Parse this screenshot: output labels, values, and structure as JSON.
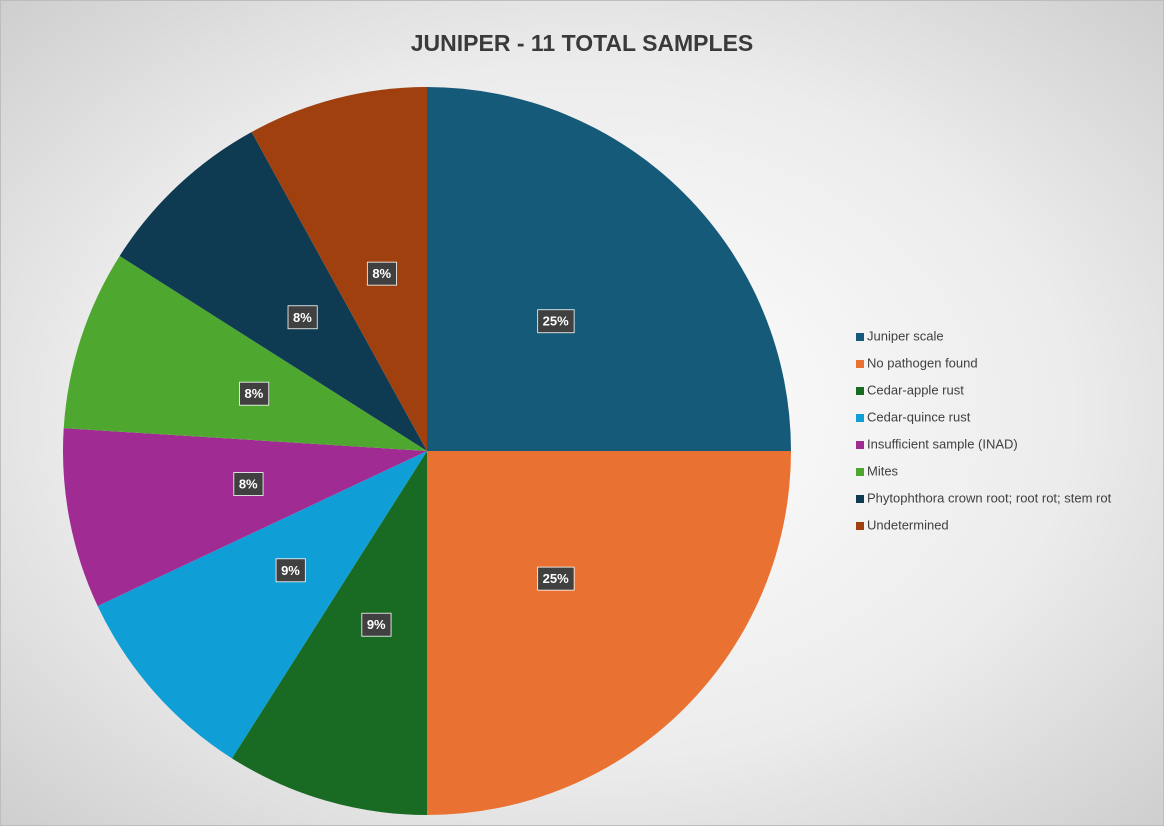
{
  "chart_data": {
    "type": "pie",
    "title": "JUNIPER - 11 TOTAL SAMPLES",
    "categories": [
      "Juniper scale",
      "No pathogen found",
      "Cedar-apple rust",
      "Cedar-quince rust",
      "Insufficient sample (INAD)",
      "Mites",
      "Phytophthora crown root; root rot; stem rot",
      "Undetermined"
    ],
    "values": [
      25,
      25,
      9,
      9,
      8,
      8,
      8,
      8
    ],
    "value_labels": [
      "25%",
      "25%",
      "9%",
      "9%",
      "8%",
      "8%",
      "8%",
      "8%"
    ],
    "colors": [
      "#165a7a",
      "#e97132",
      "#196b24",
      "#0f9ed5",
      "#a02b93",
      "#4ea72e",
      "#0e3a52",
      "#a0400f"
    ],
    "start_angle": 0,
    "direction": "clockwise",
    "legend": "right"
  }
}
